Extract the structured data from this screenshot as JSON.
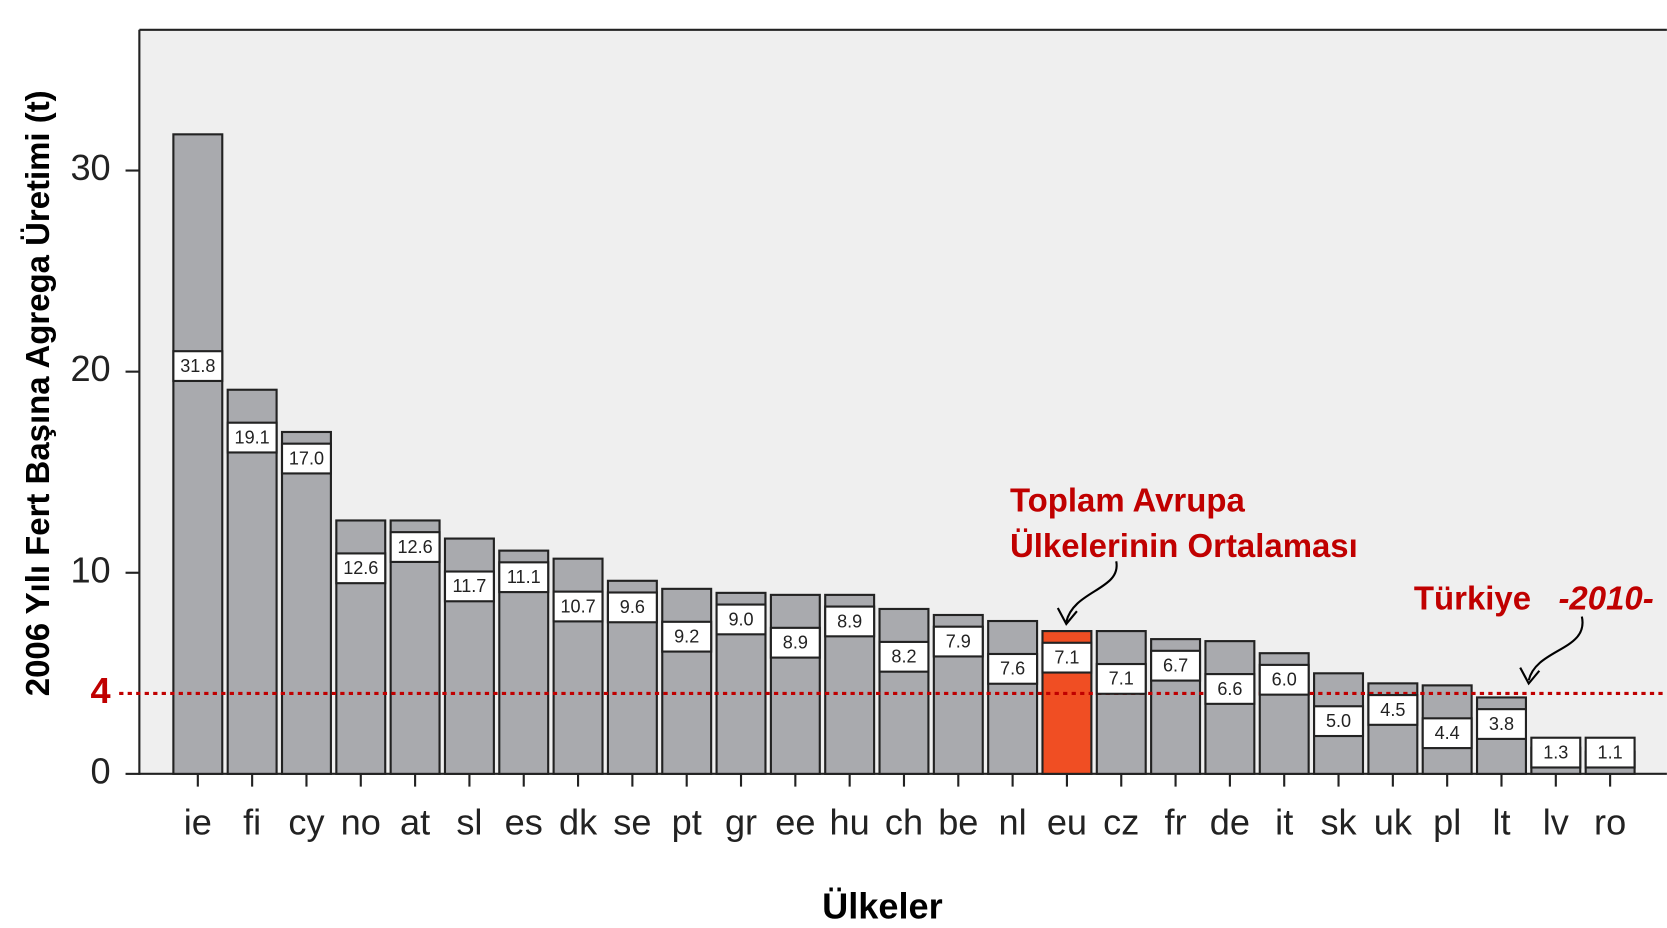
{
  "chart_data": {
    "type": "bar",
    "y_label": "2006 Yılı Fert Başına Agrega Üretimi (t)",
    "x_label": "Ülkeler",
    "categories": [
      "ie",
      "fi",
      "cy",
      "no",
      "at",
      "sl",
      "es",
      "dk",
      "se",
      "pt",
      "gr",
      "ee",
      "hu",
      "ch",
      "be",
      "nl",
      "eu",
      "cz",
      "fr",
      "de",
      "it",
      "sk",
      "uk",
      "pl",
      "lt",
      "lv",
      "ro"
    ],
    "values": [
      31.8,
      19.1,
      17.0,
      12.6,
      12.6,
      11.7,
      11.1,
      10.7,
      9.6,
      9.2,
      9.0,
      8.9,
      8.9,
      8.2,
      7.9,
      7.6,
      7.1,
      7.1,
      6.7,
      6.6,
      6.0,
      5.0,
      4.5,
      4.4,
      3.8,
      1.3,
      1.1
    ],
    "value_labels": [
      "31.8",
      "19.1",
      "17.0",
      "12.6",
      "12.6",
      "11.7",
      "11.1",
      "10.7",
      "9.6",
      "9.2",
      "9.0",
      "8.9",
      "8.9",
      "8.2",
      "7.9",
      "7.6",
      "7.1",
      "7.1",
      "6.7",
      "6.6",
      "6.0",
      "5.0",
      "4.5",
      "4.4",
      "3.8",
      "1.3",
      "1.1"
    ],
    "colors": [
      "#a9aaae",
      "#a9aaae",
      "#a9aaae",
      "#a9aaae",
      "#a9aaae",
      "#a9aaae",
      "#a9aaae",
      "#a9aaae",
      "#a9aaae",
      "#a9aaae",
      "#a9aaae",
      "#a9aaae",
      "#a9aaae",
      "#a9aaae",
      "#a9aaae",
      "#a9aaae",
      "#f04e23",
      "#a9aaae",
      "#a9aaae",
      "#a9aaae",
      "#a9aaae",
      "#a9aaae",
      "#a9aaae",
      "#a9aaae",
      "#a9aaae",
      "#a9aaae",
      "#a9aaae"
    ],
    "ylim": [
      0,
      37
    ],
    "yticks": [
      0,
      10,
      20,
      30
    ],
    "reference_line": {
      "value": 4,
      "color": "#c00000"
    },
    "annotations": [
      "Toplam Avrupa",
      "Ülkelerinin Ortalaması",
      "Türkiye",
      "-2010-"
    ]
  }
}
